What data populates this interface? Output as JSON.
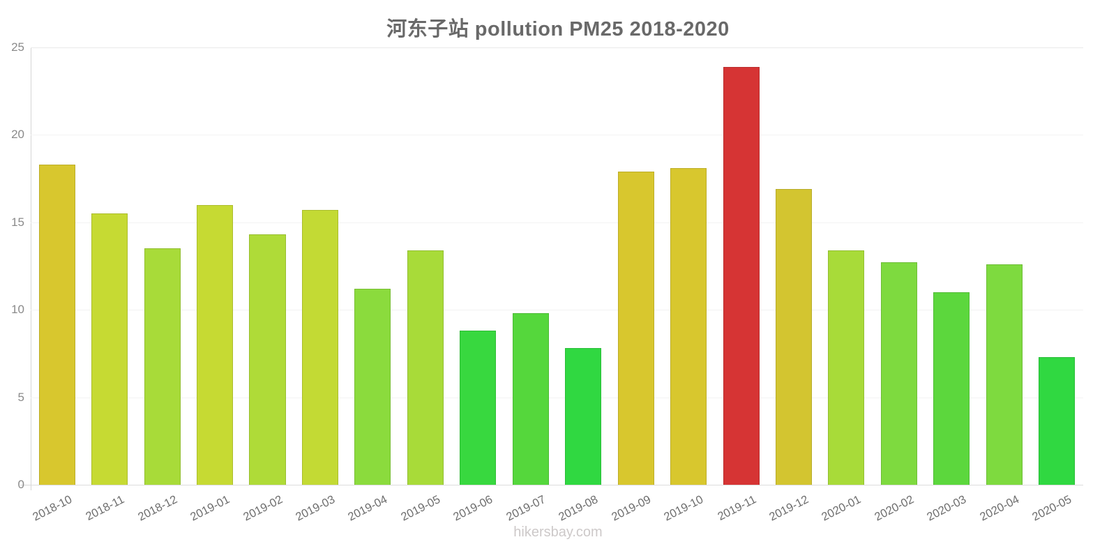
{
  "title": "河东子站 pollution PM25 2018-2020",
  "footer": "hikersbay.com",
  "chart_data": {
    "type": "bar",
    "title": "河东子站 pollution PM25 2018-2020",
    "categories": [
      "2018-10",
      "2018-11",
      "2018-12",
      "2019-01",
      "2019-02",
      "2019-03",
      "2019-04",
      "2019-05",
      "2019-06",
      "2019-07",
      "2019-08",
      "2019-09",
      "2019-10",
      "2019-11",
      "2019-12",
      "2020-01",
      "2020-02",
      "2020-03",
      "2020-04",
      "2020-05"
    ],
    "values": [
      18.3,
      15.5,
      13.5,
      16.0,
      14.3,
      15.7,
      11.2,
      13.4,
      8.8,
      9.8,
      7.8,
      17.9,
      18.1,
      23.9,
      16.9,
      13.4,
      12.7,
      11.0,
      12.6,
      7.3
    ],
    "bar_colors": [
      "#d8c72e",
      "#c6da33",
      "#a8db39",
      "#c6da33",
      "#afdb38",
      "#c3da34",
      "#8bdb3d",
      "#a8db39",
      "#38d83f",
      "#55d73c",
      "#30d841",
      "#d8c72e",
      "#d8c72e",
      "#d63434",
      "#d3c530",
      "#a8db39",
      "#7eda3f",
      "#5cd73d",
      "#7eda3f",
      "#30d841"
    ],
    "xlabel": "",
    "ylabel": "",
    "ylim": [
      0,
      25
    ],
    "yticks": [
      0,
      5,
      10,
      15,
      20,
      25
    ],
    "grid": true,
    "legend": "none",
    "x_label_rotation_deg": -27
  },
  "colors": {
    "title_text": "#696969",
    "y_tick_text": "#8a8a8a",
    "x_tick_text": "#6e6e6e",
    "axis_line": "#d6d6d6",
    "gridline": "#f3f3f3",
    "footer_text": "#cdc9c9",
    "background": "#ffffff"
  }
}
